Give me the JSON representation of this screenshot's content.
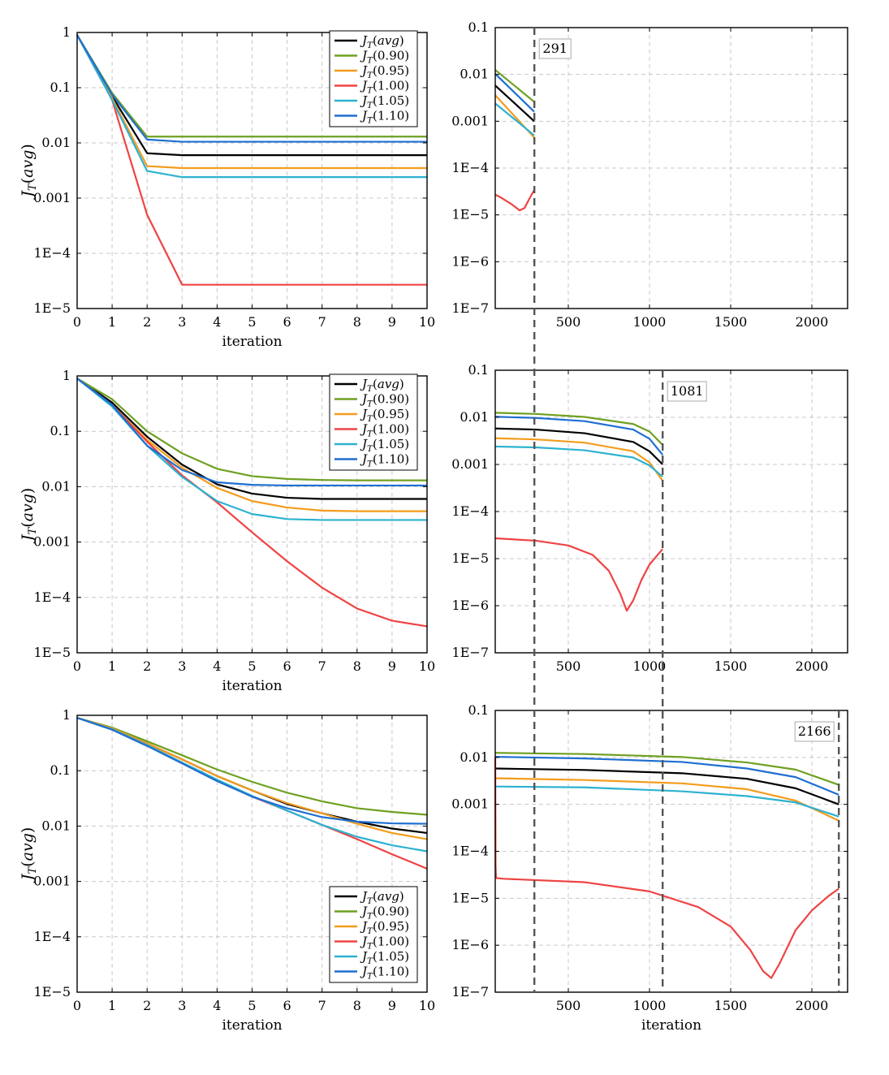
{
  "series_names": [
    "avg",
    "0.90",
    "0.95",
    "1.00",
    "1.05",
    "1.10"
  ],
  "colors": {
    "avg": "#000000",
    "0.90": "#6fa021",
    "0.95": "#f39c1c",
    "1.00": "#ef4343",
    "1.05": "#2cb2d0",
    "1.10": "#1f6fd1",
    "marker": "#555555"
  },
  "legend_labels": [
    "J_T(avg)",
    "J_T(0.90)",
    "J_T(0.95)",
    "J_T(1.00)",
    "J_T(1.05)",
    "J_T(1.10)"
  ],
  "common_ylabel": "J_T(avg)",
  "chart_data": [
    {
      "type": "line",
      "scale_y": "log",
      "xlabel": "iteration",
      "ylabel": "J_T(avg)",
      "xlim": [
        0,
        10
      ],
      "ylim": [
        1e-05,
        1
      ],
      "x_ticks": [
        "0",
        "1",
        "2",
        "3",
        "4",
        "5",
        "6",
        "7",
        "8",
        "9",
        "10"
      ],
      "y_ticks": [
        "1",
        "0.1",
        "0.01",
        "0.001",
        "1E−4",
        "1E−5"
      ],
      "legend_position": "top-right",
      "x": [
        0,
        1,
        2,
        3,
        4,
        5,
        6,
        7,
        8,
        9,
        10
      ],
      "series": [
        {
          "name": "avg",
          "values": [
            0.9,
            0.07,
            0.0065,
            0.006,
            0.006,
            0.006,
            0.006,
            0.006,
            0.006,
            0.006,
            0.006
          ]
        },
        {
          "name": "0.90",
          "values": [
            0.9,
            0.08,
            0.013,
            0.013,
            0.013,
            0.013,
            0.013,
            0.013,
            0.013,
            0.013,
            0.013
          ]
        },
        {
          "name": "0.95",
          "values": [
            0.9,
            0.065,
            0.0038,
            0.0035,
            0.0035,
            0.0035,
            0.0035,
            0.0035,
            0.0035,
            0.0035,
            0.0035
          ]
        },
        {
          "name": "1.00",
          "values": [
            0.9,
            0.06,
            0.0005,
            2.7e-05,
            2.7e-05,
            2.7e-05,
            2.7e-05,
            2.7e-05,
            2.7e-05,
            2.7e-05,
            2.7e-05
          ]
        },
        {
          "name": "1.05",
          "values": [
            0.9,
            0.06,
            0.0031,
            0.0024,
            0.0024,
            0.0024,
            0.0024,
            0.0024,
            0.0024,
            0.0024,
            0.0024
          ]
        },
        {
          "name": "1.10",
          "values": [
            0.9,
            0.075,
            0.0115,
            0.0105,
            0.0105,
            0.0105,
            0.0105,
            0.0105,
            0.0105,
            0.0105,
            0.0105
          ]
        }
      ]
    },
    {
      "type": "line",
      "scale_y": "log",
      "xlabel": "",
      "ylabel": "",
      "xlim": [
        50,
        2220
      ],
      "ylim": [
        1e-07,
        0.1
      ],
      "x_ticks": [
        "500",
        "1000",
        "1500",
        "2000"
      ],
      "y_ticks": [
        "0.1",
        "0.01",
        "0.001",
        "1E−4",
        "1E−5",
        "1E−6",
        "1E−7"
      ],
      "marker_label": "291",
      "series": [
        {
          "name": "avg",
          "x": [
            50,
            290
          ],
          "values": [
            0.0058,
            0.001
          ]
        },
        {
          "name": "0.90",
          "x": [
            50,
            290
          ],
          "values": [
            0.0125,
            0.0026
          ]
        },
        {
          "name": "0.95",
          "x": [
            50,
            290
          ],
          "values": [
            0.0036,
            0.00045
          ]
        },
        {
          "name": "1.00",
          "x": [
            50,
            80,
            150,
            200,
            230,
            260,
            290
          ],
          "values": [
            2.7e-05,
            2.4e-05,
            1.7e-05,
            1.25e-05,
            1.4e-05,
            2.2e-05,
            3.4e-05
          ]
        },
        {
          "name": "1.05",
          "x": [
            50,
            290
          ],
          "values": [
            0.0024,
            0.0005
          ]
        },
        {
          "name": "1.10",
          "x": [
            50,
            290
          ],
          "values": [
            0.0103,
            0.0016
          ]
        }
      ]
    },
    {
      "type": "line",
      "scale_y": "log",
      "xlabel": "iteration",
      "ylabel": "J_T(avg)",
      "xlim": [
        0,
        10
      ],
      "ylim": [
        1e-05,
        1
      ],
      "x_ticks": [
        "0",
        "1",
        "2",
        "3",
        "4",
        "5",
        "6",
        "7",
        "8",
        "9",
        "10"
      ],
      "y_ticks": [
        "1",
        "0.1",
        "0.01",
        "0.001",
        "1E−4",
        "1E−5"
      ],
      "legend_position": "top-right",
      "x": [
        0,
        1,
        2,
        3,
        4,
        5,
        6,
        7,
        8,
        9,
        10
      ],
      "series": [
        {
          "name": "avg",
          "values": [
            0.9,
            0.33,
            0.08,
            0.025,
            0.011,
            0.0075,
            0.0063,
            0.006,
            0.006,
            0.006,
            0.006
          ]
        },
        {
          "name": "0.90",
          "values": [
            0.9,
            0.38,
            0.1,
            0.04,
            0.021,
            0.0155,
            0.0138,
            0.0132,
            0.013,
            0.013,
            0.013
          ]
        },
        {
          "name": "0.95",
          "values": [
            0.9,
            0.3,
            0.07,
            0.022,
            0.0095,
            0.0055,
            0.0042,
            0.0037,
            0.0036,
            0.0036,
            0.0036
          ]
        },
        {
          "name": "1.00",
          "values": [
            0.9,
            0.3,
            0.065,
            0.016,
            0.0052,
            0.0015,
            0.00045,
            0.00015,
            6.3e-05,
            3.8e-05,
            3e-05
          ]
        },
        {
          "name": "1.05",
          "values": [
            0.9,
            0.28,
            0.055,
            0.015,
            0.0055,
            0.0032,
            0.0026,
            0.0025,
            0.0025,
            0.0025,
            0.0025
          ]
        },
        {
          "name": "1.10",
          "values": [
            0.9,
            0.3,
            0.055,
            0.02,
            0.012,
            0.0108,
            0.0105,
            0.0105,
            0.0105,
            0.0105,
            0.0105
          ]
        }
      ]
    },
    {
      "type": "line",
      "scale_y": "log",
      "xlabel": "",
      "ylabel": "",
      "xlim": [
        50,
        2220
      ],
      "ylim": [
        1e-07,
        0.1
      ],
      "x_ticks": [
        "500",
        "1000",
        "1500",
        "2000"
      ],
      "y_ticks": [
        "0.1",
        "0.01",
        "0.001",
        "1E−4",
        "1E−5",
        "1E−6",
        "1E−7"
      ],
      "marker_label": "1081",
      "series": [
        {
          "name": "avg",
          "x": [
            50,
            300,
            600,
            900,
            1000,
            1081
          ],
          "values": [
            0.0058,
            0.0055,
            0.0046,
            0.003,
            0.0019,
            0.001
          ]
        },
        {
          "name": "0.90",
          "x": [
            50,
            300,
            600,
            900,
            1000,
            1081
          ],
          "values": [
            0.0125,
            0.0118,
            0.0102,
            0.0072,
            0.005,
            0.0026
          ]
        },
        {
          "name": "0.95",
          "x": [
            50,
            300,
            600,
            900,
            1000,
            1081
          ],
          "values": [
            0.0036,
            0.0034,
            0.0029,
            0.0019,
            0.0011,
            0.00045
          ]
        },
        {
          "name": "1.00",
          "x": [
            50,
            300,
            500,
            650,
            750,
            820,
            860,
            900,
            950,
            1000,
            1050,
            1081
          ],
          "values": [
            2.7e-05,
            2.4e-05,
            1.9e-05,
            1.2e-05,
            5.5e-06,
            1.8e-06,
            7.8e-07,
            1.3e-06,
            3.5e-06,
            7.5e-06,
            1.2e-05,
            1.6e-05
          ]
        },
        {
          "name": "1.05",
          "x": [
            50,
            300,
            600,
            900,
            1000,
            1081
          ],
          "values": [
            0.0024,
            0.0023,
            0.002,
            0.0014,
            0.00095,
            0.00055
          ]
        },
        {
          "name": "1.10",
          "x": [
            50,
            300,
            600,
            900,
            1000,
            1081
          ],
          "values": [
            0.0103,
            0.0097,
            0.0083,
            0.0055,
            0.0035,
            0.0016
          ]
        }
      ]
    },
    {
      "type": "line",
      "scale_y": "log",
      "xlabel": "iteration",
      "ylabel": "J_T(avg)",
      "xlim": [
        0,
        10
      ],
      "ylim": [
        1e-05,
        1
      ],
      "x_ticks": [
        "0",
        "1",
        "2",
        "3",
        "4",
        "5",
        "6",
        "7",
        "8",
        "9",
        "10"
      ],
      "y_ticks": [
        "1",
        "0.1",
        "0.01",
        "0.001",
        "1E−4",
        "1E−5"
      ],
      "legend_position": "bottom-right",
      "x": [
        0,
        1,
        2,
        3,
        4,
        5,
        6,
        7,
        8,
        9,
        10
      ],
      "series": [
        {
          "name": "avg",
          "values": [
            0.9,
            0.58,
            0.31,
            0.16,
            0.08,
            0.044,
            0.025,
            0.017,
            0.012,
            0.009,
            0.0075
          ]
        },
        {
          "name": "0.90",
          "values": [
            0.9,
            0.6,
            0.34,
            0.19,
            0.105,
            0.063,
            0.04,
            0.028,
            0.021,
            0.018,
            0.016
          ]
        },
        {
          "name": "0.95",
          "values": [
            0.9,
            0.58,
            0.31,
            0.16,
            0.08,
            0.044,
            0.026,
            0.017,
            0.011,
            0.0075,
            0.0058
          ]
        },
        {
          "name": "1.00",
          "values": [
            0.9,
            0.56,
            0.29,
            0.14,
            0.068,
            0.034,
            0.019,
            0.0105,
            0.0058,
            0.0031,
            0.0017
          ]
        },
        {
          "name": "1.05",
          "values": [
            0.9,
            0.56,
            0.29,
            0.14,
            0.069,
            0.035,
            0.019,
            0.0105,
            0.0064,
            0.0045,
            0.0035
          ]
        },
        {
          "name": "1.10",
          "values": [
            0.9,
            0.55,
            0.28,
            0.135,
            0.065,
            0.034,
            0.021,
            0.0145,
            0.012,
            0.0112,
            0.011
          ]
        }
      ]
    },
    {
      "type": "line",
      "scale_y": "log",
      "xlabel": "iteration",
      "ylabel": "",
      "xlim": [
        50,
        2220
      ],
      "ylim": [
        1e-07,
        0.1
      ],
      "x_ticks": [
        "500",
        "1000",
        "1500",
        "2000"
      ],
      "y_ticks": [
        "0.1",
        "0.01",
        "0.001",
        "1E−4",
        "1E−5",
        "1E−6",
        "1E−7"
      ],
      "marker_label": "2166",
      "series": [
        {
          "name": "avg",
          "x": [
            50,
            600,
            1200,
            1600,
            1900,
            2166
          ],
          "values": [
            0.0058,
            0.0054,
            0.0046,
            0.0035,
            0.0022,
            0.001
          ]
        },
        {
          "name": "0.90",
          "x": [
            50,
            600,
            1200,
            1600,
            1900,
            2166
          ],
          "values": [
            0.0125,
            0.0118,
            0.0102,
            0.0078,
            0.0055,
            0.0026
          ]
        },
        {
          "name": "0.95",
          "x": [
            50,
            600,
            1200,
            1600,
            1900,
            2166
          ],
          "values": [
            0.0036,
            0.0033,
            0.0028,
            0.0021,
            0.0012,
            0.00045
          ]
        },
        {
          "name": "1.00",
          "x": [
            50,
            52,
            55,
            100,
            600,
            1000,
            1300,
            1500,
            1620,
            1700,
            1750,
            1800,
            1900,
            2000,
            2100,
            2166
          ],
          "values": [
            0.01,
            5e-05,
            2.7e-05,
            2.6e-05,
            2.2e-05,
            1.4e-05,
            6.5e-06,
            2.5e-06,
            8e-07,
            2.8e-07,
            2e-07,
            4e-07,
            2.1e-06,
            5.5e-06,
            1.1e-05,
            1.6e-05
          ]
        },
        {
          "name": "1.05",
          "x": [
            50,
            600,
            1200,
            1600,
            1900,
            2166
          ],
          "values": [
            0.0024,
            0.0023,
            0.0019,
            0.0015,
            0.0011,
            0.00055
          ]
        },
        {
          "name": "1.10",
          "x": [
            50,
            600,
            1200,
            1600,
            1900,
            2166
          ],
          "values": [
            0.0103,
            0.0095,
            0.008,
            0.0058,
            0.0038,
            0.0016
          ]
        }
      ]
    }
  ]
}
